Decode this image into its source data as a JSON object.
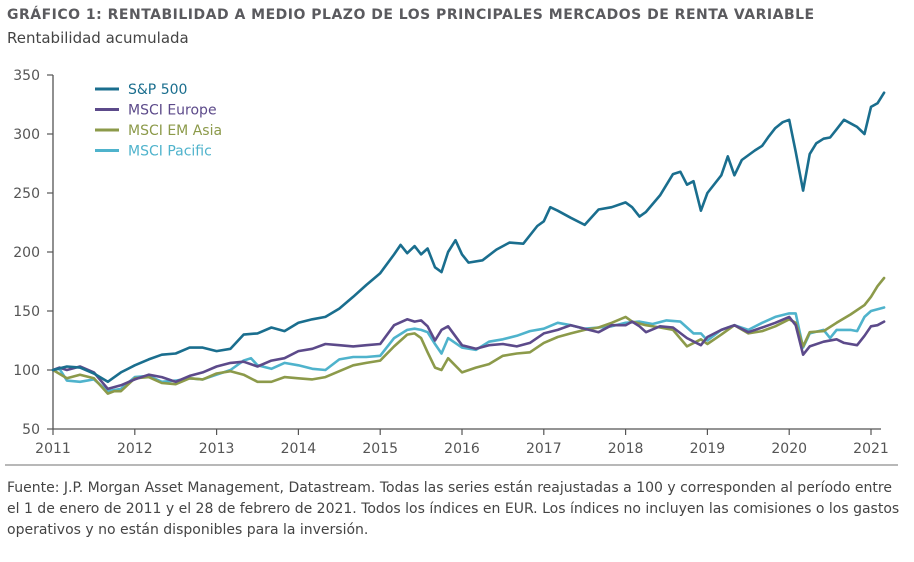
{
  "header": {
    "title": "GRÁFICO 1: RENTABILIDAD A MEDIO PLAZO DE LOS PRINCIPALES MERCADOS DE RENTA VARIABLE",
    "subtitle": "Rentabilidad acumulada"
  },
  "footer": {
    "source": "Fuente: J.P. Morgan Asset Management, Datastream. Todas las series están reajustadas a 100 y corresponden al período entre el 1 de enero de 2011 y el 28 de febrero de 2021. Todos los índices en EUR. Los índices no incluyen las comisiones o los gastos operativos y no están disponibles para la inversión."
  },
  "chart_data": {
    "type": "line",
    "title": "GRÁFICO 1: RENTABILIDAD A MEDIO PLAZO DE LOS PRINCIPALES MERCADOS DE RENTA VARIABLE",
    "subtitle": "Rentabilidad acumulada",
    "xlabel": "",
    "ylabel": "",
    "xlim": [
      2011,
      2021.16
    ],
    "ylim": [
      50,
      350
    ],
    "yticks": [
      50,
      100,
      150,
      200,
      250,
      300,
      350
    ],
    "xticks": [
      2011,
      2012,
      2013,
      2014,
      2015,
      2016,
      2017,
      2018,
      2019,
      2020,
      2021
    ],
    "xtick_labels": [
      "2011",
      "2012",
      "2013",
      "2014",
      "2015",
      "2016",
      "2017",
      "2018",
      "2019",
      "2020",
      "2021"
    ],
    "grid": false,
    "legend_position": "top-left",
    "series": [
      {
        "name": "S&P 500",
        "color": "#1a6e8e",
        "x": [
          2011,
          2011.17,
          2011.33,
          2011.5,
          2011.67,
          2011.83,
          2012,
          2012.17,
          2012.33,
          2012.5,
          2012.67,
          2012.83,
          2013,
          2013.17,
          2013.33,
          2013.5,
          2013.67,
          2013.83,
          2014,
          2014.17,
          2014.33,
          2014.5,
          2014.67,
          2014.83,
          2015,
          2015.17,
          2015.25,
          2015.33,
          2015.42,
          2015.5,
          2015.58,
          2015.67,
          2015.75,
          2015.83,
          2015.92,
          2016,
          2016.08,
          2016.25,
          2016.42,
          2016.58,
          2016.75,
          2016.92,
          2017,
          2017.08,
          2017.17,
          2017.33,
          2017.5,
          2017.67,
          2017.83,
          2018,
          2018.08,
          2018.17,
          2018.25,
          2018.42,
          2018.58,
          2018.67,
          2018.75,
          2018.83,
          2018.92,
          2019,
          2019.17,
          2019.25,
          2019.33,
          2019.42,
          2019.58,
          2019.67,
          2019.75,
          2019.83,
          2019.92,
          2020,
          2020.08,
          2020.17,
          2020.25,
          2020.33,
          2020.42,
          2020.5,
          2020.58,
          2020.67,
          2020.83,
          2020.92,
          2021,
          2021.08,
          2021.16
        ],
        "values": [
          100,
          103,
          102,
          97,
          90,
          98,
          104,
          109,
          113,
          114,
          119,
          119,
          116,
          118,
          130,
          131,
          136,
          133,
          140,
          143,
          145,
          152,
          162,
          172,
          182,
          198,
          206,
          199,
          205,
          198,
          203,
          187,
          183,
          200,
          210,
          198,
          191,
          193,
          202,
          208,
          207,
          222,
          226,
          238,
          235,
          229,
          223,
          236,
          238,
          242,
          238,
          230,
          234,
          248,
          266,
          268,
          257,
          260,
          235,
          250,
          265,
          281,
          265,
          278,
          286,
          290,
          298,
          305,
          310,
          312,
          285,
          252,
          283,
          292,
          296,
          297,
          304,
          312,
          306,
          300,
          323,
          326,
          335
        ]
      },
      {
        "name": "MSCI Europe",
        "color": "#5c4a8a",
        "x": [
          2011,
          2011.08,
          2011.17,
          2011.33,
          2011.5,
          2011.67,
          2011.83,
          2012,
          2012.17,
          2012.33,
          2012.5,
          2012.67,
          2012.83,
          2013,
          2013.17,
          2013.33,
          2013.5,
          2013.67,
          2013.83,
          2014,
          2014.17,
          2014.33,
          2014.5,
          2014.67,
          2014.83,
          2015,
          2015.17,
          2015.33,
          2015.42,
          2015.5,
          2015.58,
          2015.67,
          2015.75,
          2015.83,
          2016,
          2016.17,
          2016.33,
          2016.5,
          2016.67,
          2016.83,
          2017,
          2017.17,
          2017.33,
          2017.5,
          2017.67,
          2017.83,
          2018,
          2018.08,
          2018.17,
          2018.25,
          2018.42,
          2018.58,
          2018.75,
          2018.92,
          2019,
          2019.17,
          2019.33,
          2019.5,
          2019.67,
          2019.83,
          2020,
          2020.08,
          2020.17,
          2020.25,
          2020.42,
          2020.58,
          2020.67,
          2020.83,
          2020.92,
          2021,
          2021.08,
          2021.16
        ],
        "values": [
          100,
          102,
          100,
          103,
          98,
          84,
          87,
          92,
          96,
          94,
          90,
          95,
          98,
          103,
          106,
          107,
          103,
          108,
          110,
          116,
          118,
          122,
          121,
          120,
          121,
          122,
          138,
          143,
          141,
          142,
          137,
          125,
          134,
          137,
          121,
          118,
          121,
          122,
          120,
          123,
          131,
          134,
          138,
          135,
          132,
          138,
          138,
          141,
          137,
          132,
          137,
          136,
          127,
          121,
          128,
          134,
          138,
          132,
          136,
          140,
          145,
          138,
          113,
          120,
          124,
          126,
          123,
          121,
          129,
          137,
          138,
          141
        ]
      },
      {
        "name": "MSCI EM Asia",
        "color": "#8c9a4a",
        "x": [
          2011,
          2011.17,
          2011.33,
          2011.5,
          2011.67,
          2011.75,
          2011.83,
          2012,
          2012.17,
          2012.33,
          2012.5,
          2012.67,
          2012.83,
          2013,
          2013.17,
          2013.33,
          2013.5,
          2013.67,
          2013.83,
          2014,
          2014.17,
          2014.33,
          2014.5,
          2014.67,
          2014.83,
          2015,
          2015.17,
          2015.33,
          2015.42,
          2015.5,
          2015.58,
          2015.67,
          2015.75,
          2015.83,
          2016,
          2016.17,
          2016.33,
          2016.5,
          2016.67,
          2016.83,
          2017,
          2017.17,
          2017.33,
          2017.5,
          2017.67,
          2017.83,
          2018,
          2018.08,
          2018.25,
          2018.42,
          2018.58,
          2018.75,
          2018.92,
          2019,
          2019.17,
          2019.33,
          2019.5,
          2019.67,
          2019.83,
          2020,
          2020.08,
          2020.17,
          2020.25,
          2020.42,
          2020.58,
          2020.75,
          2020.92,
          2021,
          2021.08,
          2021.16
        ],
        "values": [
          100,
          93,
          96,
          93,
          80,
          82,
          82,
          93,
          94,
          89,
          88,
          93,
          92,
          97,
          99,
          96,
          90,
          90,
          94,
          93,
          92,
          94,
          99,
          104,
          106,
          108,
          120,
          130,
          131,
          127,
          115,
          102,
          100,
          110,
          98,
          102,
          105,
          112,
          114,
          115,
          123,
          128,
          131,
          134,
          136,
          140,
          145,
          141,
          138,
          136,
          134,
          120,
          126,
          122,
          130,
          138,
          131,
          133,
          137,
          143,
          140,
          120,
          132,
          133,
          140,
          147,
          155,
          162,
          171,
          178
        ]
      },
      {
        "name": "MSCI Pacific",
        "color": "#4fb3cc",
        "x": [
          2011,
          2011.08,
          2011.17,
          2011.33,
          2011.5,
          2011.67,
          2011.83,
          2012,
          2012.17,
          2012.33,
          2012.5,
          2012.67,
          2012.83,
          2013,
          2013.17,
          2013.33,
          2013.42,
          2013.5,
          2013.67,
          2013.83,
          2014,
          2014.17,
          2014.33,
          2014.5,
          2014.67,
          2014.83,
          2015,
          2015.17,
          2015.33,
          2015.42,
          2015.5,
          2015.58,
          2015.67,
          2015.75,
          2015.83,
          2016,
          2016.17,
          2016.33,
          2016.5,
          2016.67,
          2016.83,
          2017,
          2017.17,
          2017.33,
          2017.5,
          2017.67,
          2017.83,
          2018,
          2018.17,
          2018.33,
          2018.5,
          2018.67,
          2018.83,
          2018.92,
          2019,
          2019.17,
          2019.33,
          2019.5,
          2019.67,
          2019.83,
          2020,
          2020.08,
          2020.17,
          2020.25,
          2020.42,
          2020.5,
          2020.58,
          2020.75,
          2020.83,
          2020.92,
          2021,
          2021.16
        ],
        "values": [
          100,
          101,
          91,
          90,
          92,
          82,
          84,
          94,
          95,
          90,
          91,
          93,
          92,
          96,
          100,
          108,
          110,
          104,
          101,
          106,
          104,
          101,
          100,
          109,
          111,
          111,
          112,
          127,
          134,
          135,
          134,
          132,
          122,
          114,
          127,
          119,
          117,
          124,
          126,
          129,
          133,
          135,
          140,
          138,
          135,
          136,
          137,
          140,
          141,
          139,
          142,
          141,
          131,
          131,
          125,
          134,
          138,
          134,
          140,
          145,
          148,
          148,
          119,
          131,
          134,
          127,
          134,
          134,
          133,
          145,
          150,
          153
        ]
      }
    ]
  }
}
